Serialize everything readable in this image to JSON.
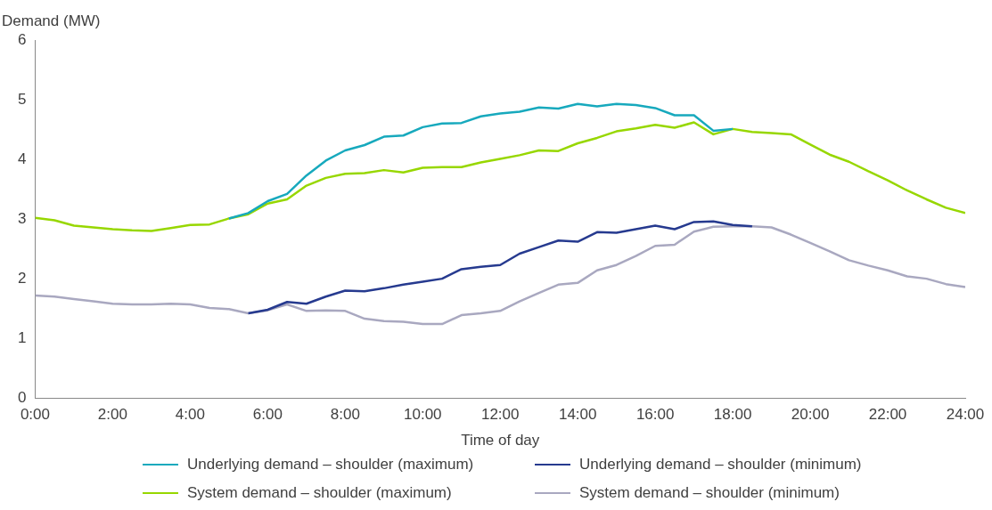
{
  "chart_data": {
    "type": "line",
    "xlabel": "Time of day",
    "ylabel": "Demand (MW)",
    "x": [
      0,
      0.5,
      1,
      1.5,
      2,
      2.5,
      3,
      3.5,
      4,
      4.5,
      5,
      5.5,
      6,
      6.5,
      7,
      7.5,
      8,
      8.5,
      9,
      9.5,
      10,
      10.5,
      11,
      11.5,
      12,
      12.5,
      13,
      13.5,
      14,
      14.5,
      15,
      15.5,
      16,
      16.5,
      17,
      17.5,
      18,
      18.5,
      19,
      19.5,
      20,
      20.5,
      21,
      21.5,
      22,
      22.5,
      23,
      23.5,
      24
    ],
    "xlim": [
      0,
      24
    ],
    "xticks": [
      {
        "value": 0,
        "label": "0:00"
      },
      {
        "value": 2,
        "label": "2:00"
      },
      {
        "value": 4,
        "label": "4:00"
      },
      {
        "value": 6,
        "label": "6:00"
      },
      {
        "value": 8,
        "label": "8:00"
      },
      {
        "value": 10,
        "label": "10:00"
      },
      {
        "value": 12,
        "label": "12:00"
      },
      {
        "value": 14,
        "label": "14:00"
      },
      {
        "value": 16,
        "label": "16:00"
      },
      {
        "value": 18,
        "label": "18:00"
      },
      {
        "value": 20,
        "label": "20:00"
      },
      {
        "value": 22,
        "label": "22:00"
      },
      {
        "value": 24,
        "label": "24:00"
      }
    ],
    "ylim": [
      0,
      6
    ],
    "yticks": [
      0,
      1,
      2,
      3,
      4,
      5,
      6
    ],
    "grid": false,
    "legend": "bottom",
    "marker": "none",
    "line_style": "solid",
    "series": [
      {
        "name": "Underlying demand – shoulder (maximum)",
        "color": "#17a9bd",
        "values": [
          null,
          null,
          null,
          null,
          null,
          null,
          null,
          null,
          null,
          null,
          3.01,
          3.1,
          3.3,
          3.42,
          3.73,
          3.98,
          4.15,
          4.24,
          4.38,
          4.4,
          4.54,
          4.6,
          4.61,
          4.72,
          4.77,
          4.8,
          4.87,
          4.85,
          4.93,
          4.89,
          4.93,
          4.91,
          4.86,
          4.74,
          4.74,
          4.48,
          4.51,
          null,
          null,
          null,
          null,
          null,
          null,
          null,
          null,
          null,
          null,
          null,
          null
        ]
      },
      {
        "name": "Underlying demand – shoulder (minimum)",
        "color": "#263a8f",
        "values": [
          null,
          null,
          null,
          null,
          null,
          null,
          null,
          null,
          null,
          null,
          null,
          1.42,
          1.48,
          1.61,
          1.58,
          1.7,
          1.8,
          1.79,
          1.84,
          1.9,
          1.95,
          2.0,
          2.16,
          2.2,
          2.23,
          2.42,
          2.53,
          2.64,
          2.62,
          2.78,
          2.77,
          2.83,
          2.89,
          2.83,
          2.95,
          2.96,
          2.9,
          2.88,
          null,
          null,
          null,
          null,
          null,
          null,
          null,
          null,
          null,
          null,
          null
        ]
      },
      {
        "name": "System demand – shoulder (maximum)",
        "color": "#97d700",
        "values": [
          3.02,
          2.98,
          2.89,
          2.86,
          2.83,
          2.81,
          2.8,
          2.85,
          2.9,
          2.91,
          3.01,
          3.08,
          3.26,
          3.33,
          3.56,
          3.69,
          3.76,
          3.77,
          3.82,
          3.78,
          3.86,
          3.87,
          3.87,
          3.95,
          4.01,
          4.07,
          4.15,
          4.14,
          4.27,
          4.36,
          4.47,
          4.52,
          4.58,
          4.53,
          4.62,
          4.42,
          4.51,
          4.46,
          4.44,
          4.42,
          4.25,
          4.08,
          3.96,
          3.8,
          3.65,
          3.48,
          3.33,
          3.19,
          3.1
        ]
      },
      {
        "name": "System demand – shoulder (minimum)",
        "color": "#a9a8c0",
        "values": [
          1.72,
          1.7,
          1.66,
          1.62,
          1.58,
          1.57,
          1.57,
          1.58,
          1.57,
          1.51,
          1.49,
          1.42,
          1.47,
          1.57,
          1.46,
          1.47,
          1.46,
          1.33,
          1.29,
          1.28,
          1.24,
          1.24,
          1.39,
          1.42,
          1.46,
          1.62,
          1.76,
          1.9,
          1.93,
          2.14,
          2.23,
          2.38,
          2.55,
          2.57,
          2.79,
          2.87,
          2.88,
          2.88,
          2.86,
          2.74,
          2.6,
          2.46,
          2.31,
          2.22,
          2.14,
          2.04,
          2.0,
          1.91,
          1.86
        ]
      }
    ]
  }
}
